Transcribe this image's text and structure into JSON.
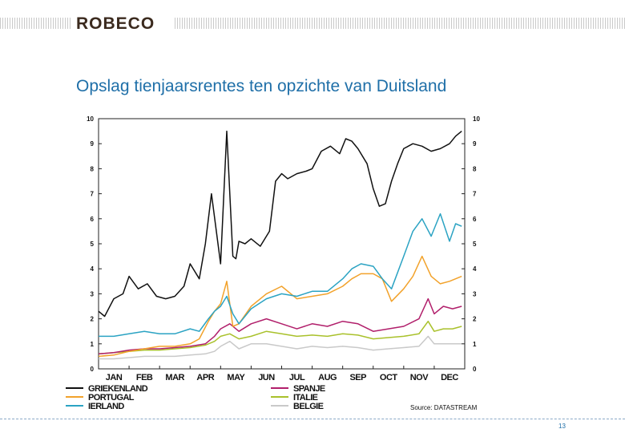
{
  "header": {
    "logo_text": "ROBECO"
  },
  "slide": {
    "title": "Opslag tienjaarsrentes ten opzichte van Duitsland",
    "page_number": "13"
  },
  "chart_data": {
    "type": "line",
    "title": "",
    "xlabel": "",
    "ylabel": "",
    "ylim": [
      0,
      10
    ],
    "yticks": [
      "0",
      "1",
      "2",
      "3",
      "4",
      "5",
      "6",
      "7",
      "8",
      "9",
      "10"
    ],
    "x_tick_labels": [
      "JAN",
      "FEB",
      "MAR",
      "APR",
      "MAY",
      "JUN",
      "JUL",
      "AUG",
      "SEP",
      "OCT",
      "NOV",
      "DEC"
    ],
    "source": "Source: DATASTREAM",
    "grid": false,
    "legend_position": "bottom",
    "series": [
      {
        "name": "GRIEKENLAND",
        "color": "#111111",
        "x": [
          0,
          0.2,
          0.5,
          0.8,
          1.0,
          1.3,
          1.6,
          1.9,
          2.2,
          2.5,
          2.8,
          3.0,
          3.3,
          3.5,
          3.7,
          4.0,
          4.2,
          4.4,
          4.5,
          4.6,
          4.8,
          5.0,
          5.3,
          5.6,
          5.8,
          6.0,
          6.2,
          6.5,
          6.8,
          7.0,
          7.3,
          7.6,
          7.9,
          8.1,
          8.3,
          8.5,
          8.8,
          9.0,
          9.2,
          9.4,
          9.6,
          9.8,
          10.0,
          10.3,
          10.6,
          10.9,
          11.2,
          11.5,
          11.7,
          11.9
        ],
        "values": [
          2.3,
          2.1,
          2.8,
          3.0,
          3.7,
          3.2,
          3.4,
          2.9,
          2.8,
          2.9,
          3.3,
          4.2,
          3.6,
          5.0,
          7.0,
          4.2,
          9.5,
          4.5,
          4.4,
          5.1,
          5.0,
          5.2,
          4.9,
          5.5,
          7.5,
          7.8,
          7.6,
          7.8,
          7.9,
          8.0,
          8.7,
          8.9,
          8.6,
          9.2,
          9.1,
          8.8,
          8.2,
          7.2,
          6.5,
          6.6,
          7.5,
          8.2,
          8.8,
          9.0,
          8.9,
          8.7,
          8.8,
          9.0,
          9.3,
          9.5
        ]
      },
      {
        "name": "PORTUGAL",
        "color": "#f2a22b",
        "x": [
          0,
          0.5,
          1.0,
          1.5,
          2.0,
          2.5,
          3.0,
          3.3,
          3.6,
          3.8,
          4.0,
          4.2,
          4.4,
          4.6,
          5.0,
          5.5,
          6.0,
          6.5,
          7.0,
          7.5,
          8.0,
          8.3,
          8.6,
          9.0,
          9.3,
          9.6,
          10.0,
          10.3,
          10.6,
          10.9,
          11.2,
          11.5,
          11.7,
          11.9
        ],
        "values": [
          0.5,
          0.55,
          0.7,
          0.8,
          0.9,
          0.9,
          1.0,
          1.2,
          1.9,
          2.3,
          2.6,
          3.5,
          1.7,
          1.8,
          2.5,
          3.0,
          3.3,
          2.8,
          2.9,
          3.0,
          3.3,
          3.6,
          3.8,
          3.8,
          3.6,
          2.7,
          3.2,
          3.7,
          4.5,
          3.7,
          3.4,
          3.5,
          3.6,
          3.7
        ]
      },
      {
        "name": "IERLAND",
        "color": "#2ba3c3",
        "x": [
          0,
          0.5,
          1.0,
          1.5,
          2.0,
          2.5,
          3.0,
          3.3,
          3.6,
          3.8,
          4.0,
          4.2,
          4.4,
          4.6,
          5.0,
          5.5,
          6.0,
          6.5,
          7.0,
          7.5,
          8.0,
          8.3,
          8.6,
          9.0,
          9.3,
          9.6,
          10.0,
          10.3,
          10.6,
          10.9,
          11.2,
          11.5,
          11.7,
          11.9
        ],
        "values": [
          1.3,
          1.3,
          1.4,
          1.5,
          1.4,
          1.4,
          1.6,
          1.5,
          2.0,
          2.3,
          2.5,
          2.9,
          2.2,
          1.8,
          2.4,
          2.8,
          3.0,
          2.9,
          3.1,
          3.1,
          3.6,
          4.0,
          4.2,
          4.1,
          3.6,
          3.2,
          4.5,
          5.5,
          6.0,
          5.3,
          6.2,
          5.1,
          5.8,
          5.7
        ]
      },
      {
        "name": "SPANJE",
        "color": "#b11f6b",
        "x": [
          0,
          0.5,
          1.0,
          1.5,
          2.0,
          2.5,
          3.0,
          3.5,
          3.8,
          4.0,
          4.3,
          4.6,
          5.0,
          5.5,
          6.0,
          6.5,
          7.0,
          7.5,
          8.0,
          8.5,
          9.0,
          9.5,
          10.0,
          10.5,
          10.8,
          11.0,
          11.3,
          11.6,
          11.9
        ],
        "values": [
          0.6,
          0.65,
          0.75,
          0.8,
          0.8,
          0.85,
          0.9,
          1.0,
          1.3,
          1.6,
          1.8,
          1.5,
          1.8,
          2.0,
          1.8,
          1.6,
          1.8,
          1.7,
          1.9,
          1.8,
          1.5,
          1.6,
          1.7,
          2.0,
          2.8,
          2.2,
          2.5,
          2.4,
          2.5
        ]
      },
      {
        "name": "ITALIE",
        "color": "#a9c12b",
        "x": [
          0,
          0.5,
          1.0,
          1.5,
          2.0,
          2.5,
          3.0,
          3.5,
          3.8,
          4.0,
          4.3,
          4.6,
          5.0,
          5.5,
          6.0,
          6.5,
          7.0,
          7.5,
          8.0,
          8.5,
          9.0,
          9.5,
          10.0,
          10.5,
          10.8,
          11.0,
          11.3,
          11.6,
          11.9
        ],
        "values": [
          0.6,
          0.65,
          0.7,
          0.75,
          0.75,
          0.8,
          0.85,
          0.95,
          1.1,
          1.3,
          1.4,
          1.2,
          1.3,
          1.5,
          1.4,
          1.3,
          1.35,
          1.3,
          1.4,
          1.35,
          1.2,
          1.25,
          1.3,
          1.4,
          1.9,
          1.5,
          1.6,
          1.6,
          1.7
        ]
      },
      {
        "name": "BELGIE",
        "color": "#c9c9c9",
        "x": [
          0,
          0.5,
          1.0,
          1.5,
          2.0,
          2.5,
          3.0,
          3.5,
          3.8,
          4.0,
          4.3,
          4.6,
          5.0,
          5.5,
          6.0,
          6.5,
          7.0,
          7.5,
          8.0,
          8.5,
          9.0,
          9.5,
          10.0,
          10.5,
          10.8,
          11.0,
          11.3,
          11.6,
          11.9
        ],
        "values": [
          0.4,
          0.4,
          0.45,
          0.5,
          0.5,
          0.5,
          0.55,
          0.6,
          0.7,
          0.9,
          1.1,
          0.8,
          1.0,
          1.0,
          0.9,
          0.8,
          0.9,
          0.85,
          0.9,
          0.85,
          0.75,
          0.8,
          0.85,
          0.9,
          1.3,
          1.0,
          1.0,
          1.0,
          1.0
        ]
      }
    ]
  }
}
